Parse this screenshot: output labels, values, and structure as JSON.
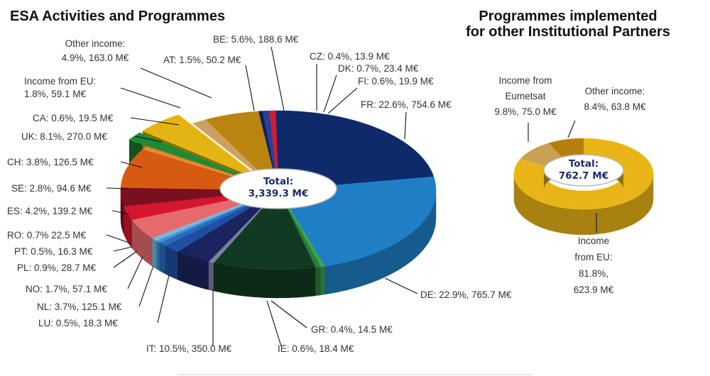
{
  "chart_data": [
    {
      "type": "pie",
      "title": "ESA Activities and Programmes",
      "total_label": "Total:",
      "total_value": "3,339.3 M€",
      "slices": [
        {
          "key": "fr",
          "label": "FR: 22.6%, 754.6 M€",
          "value": 754.6,
          "color": "#0e2a6b"
        },
        {
          "key": "de",
          "label": "DE: 22.9%, 765.7 M€",
          "value": 765.7,
          "color": "#1f7ec4"
        },
        {
          "key": "gr",
          "label": "GR: 0.4%, 14.5 M€",
          "value": 14.5,
          "color": "#3aa34a"
        },
        {
          "key": "ie",
          "label": "IE: 0.6%, 18.4 M€",
          "value": 18.4,
          "color": "#2f7a3a"
        },
        {
          "key": "it",
          "label": "IT: 10.5%, 350.0 M€",
          "value": 350.0,
          "color": "#123a22"
        },
        {
          "key": "lu",
          "label": "LU:  0.5%, 18.3 M€",
          "value": 18.3,
          "color": "#7d7f9c"
        },
        {
          "key": "nl",
          "label": "NL: 3.7%, 125.1 M€",
          "value": 125.1,
          "color": "#1a2560"
        },
        {
          "key": "no",
          "label": "NO: 1.7%, 57.1 M€",
          "value": 57.1,
          "color": "#1f4fa3"
        },
        {
          "key": "pl",
          "label": "PL: 0.9%, 28.7 M€",
          "value": 28.7,
          "color": "#2a6cb8"
        },
        {
          "key": "pt",
          "label": "PT: 0.5%, 16.3 M€",
          "value": 16.3,
          "color": "#3f93cf"
        },
        {
          "key": "ro",
          "label": "RO: 0.7% 22.5 M€",
          "value": 22.5,
          "color": "#74b7dd"
        },
        {
          "key": "es",
          "label": "ES: 4.2%, 139.2 M€",
          "value": 139.2,
          "color": "#e56a6e"
        },
        {
          "key": "se",
          "label": "SE: 2.8%, 94.6 M€",
          "value": 94.6,
          "color": "#d3172e"
        },
        {
          "key": "ch",
          "label": "CH: 3.8%, 126.5 M€",
          "value": 126.5,
          "color": "#7a0f20"
        },
        {
          "key": "uk",
          "label": "UK: 8.1%, 270.0 M€",
          "value": 270.0,
          "color": "#d65a12"
        },
        {
          "key": "ca",
          "label": "CA: 0.6%, 19.5 M€",
          "value": 19.5,
          "color": "#e08a3a"
        },
        {
          "key": "eu",
          "label": "Income from EU:\n1.8%, 59.1 M€",
          "value": 59.1,
          "color": "#1e8a36",
          "exploded": true
        },
        {
          "key": "other",
          "label": "Other income:\n4.9%, 163.0 M€",
          "value": 163.0,
          "color": "#e4b414",
          "exploded": true
        },
        {
          "key": "at",
          "label": "AT: 1.5%, 50.2 M€",
          "value": 50.2,
          "color": "#caa266"
        },
        {
          "key": "be",
          "label": "BE: 5.6%, 188.6 M€",
          "value": 188.6,
          "color": "#b98510"
        },
        {
          "key": "cz",
          "label": "CZ: 0.4%, 13.9 M€",
          "value": 13.9,
          "color": "#121f57"
        },
        {
          "key": "dk",
          "label": "DK: 0.7%, 23.4 M€",
          "value": 23.4,
          "color": "#2a3f96"
        },
        {
          "key": "fi",
          "label": "FI: 0.6%, 19.9 M€",
          "value": 19.9,
          "color": "#d21a2d"
        }
      ]
    },
    {
      "type": "pie",
      "title": "Programmes implemented\nfor other Institutional Partners",
      "total_label": "Total:",
      "total_value": "762.7 M€",
      "slices": [
        {
          "key": "eu",
          "label": "Income\nfrom EU:\n81.8%,\n623.9 M€",
          "value": 623.9,
          "color": "#e8b417"
        },
        {
          "key": "eumetsat",
          "label": "Income from\nEumetsat\n9.8%, 75.0 M€",
          "value": 75.0,
          "color": "#c9a155"
        },
        {
          "key": "other",
          "label": "Other income:\n8.4%, 63.8 M€",
          "value": 63.8,
          "color": "#b67f0d"
        }
      ]
    }
  ]
}
